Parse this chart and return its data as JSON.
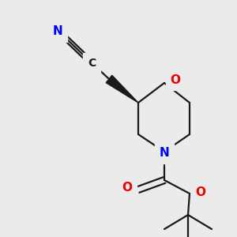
{
  "background_color": "#ebebeb",
  "bond_color": "#1a1a1a",
  "atom_colors": {
    "N": "#0000ee",
    "O": "#ee0000",
    "C": "#1a1a1a"
  },
  "bond_lw": 1.6,
  "font_size": 10.5
}
